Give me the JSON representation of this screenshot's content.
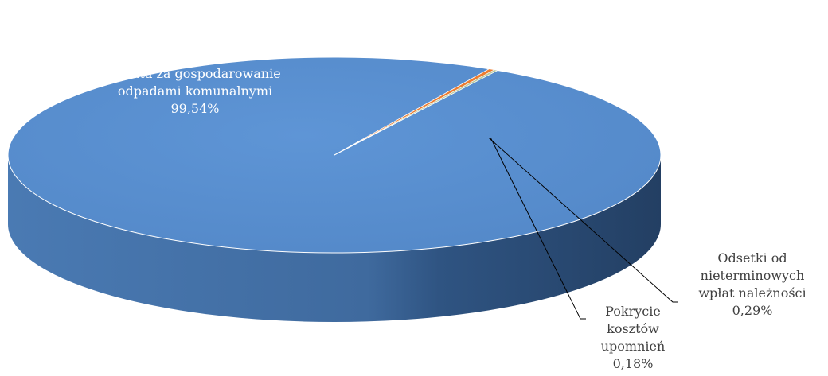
{
  "chart_data": {
    "type": "pie",
    "style": "3d",
    "legend": "none",
    "slices": [
      {
        "name": "Opłata za gospodarowanie odpadami komunalnymi",
        "value": 99.54,
        "label_lines": [
          "Opłata za gospodarowanie",
          "odpadami komunalnymi",
          "99,54%"
        ],
        "color": "#5b8fd1"
      },
      {
        "name": "Odsetki od nieterminowych wpłat należności",
        "value": 0.29,
        "label_lines": [
          "Odsetki od",
          "nieterminowych",
          "wpłat należności",
          "0,29%"
        ],
        "color": "#ed7d31"
      },
      {
        "name": "Pokrycie kosztów upomnień",
        "value": 0.18,
        "label_lines": [
          "Pokrycie",
          "kosztów",
          "upomnień",
          "0,18%"
        ],
        "color": "#b9c9a0"
      }
    ]
  }
}
